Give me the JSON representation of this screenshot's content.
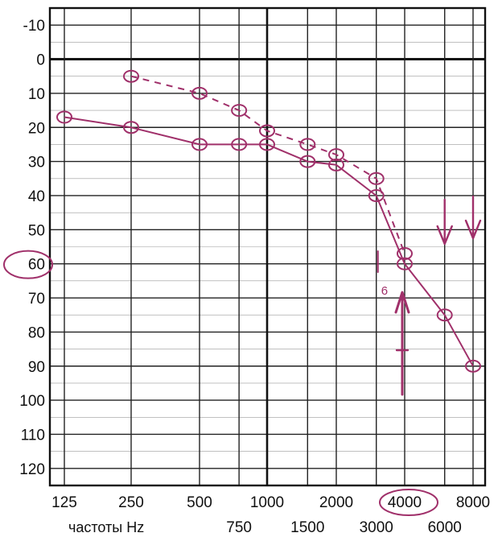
{
  "colors": {
    "grid": "#222222",
    "axis_bold": "#111111",
    "pen": "#a0306a",
    "paper": "#ffffff"
  },
  "chart_data": {
    "type": "line",
    "title": "",
    "xlabel": "частоты Hz",
    "ylabel": "",
    "y_inverted": true,
    "ylim": [
      -15,
      125
    ],
    "yticks": [
      "-10",
      "0",
      "10",
      "20",
      "30",
      "40",
      "50",
      "60",
      "70",
      "80",
      "90",
      "100",
      "110",
      "120"
    ],
    "yticks_values": [
      -10,
      0,
      10,
      20,
      30,
      40,
      50,
      60,
      70,
      80,
      90,
      100,
      110,
      120
    ],
    "x_categories": [
      "125",
      "250",
      "500",
      "1000",
      "2000",
      "4000",
      "8000"
    ],
    "x_intermediate": [
      "750",
      "1500",
      "3000",
      "6000"
    ],
    "x_caption": "частоты Hz",
    "grid": true,
    "series": [
      {
        "marker": "circle",
        "linestyle": "dashed",
        "x": [
          250,
          500,
          750,
          1000,
          1500,
          2000,
          3000,
          4000
        ],
        "values": [
          5,
          10,
          15,
          21,
          25,
          28,
          35,
          57
        ]
      },
      {
        "marker": "circle",
        "linestyle": "solid",
        "x": [
          125,
          250,
          500,
          750,
          1000,
          1500,
          2000,
          3000,
          4000,
          6000,
          8000
        ],
        "values": [
          17,
          20,
          25,
          25,
          25,
          30,
          31,
          40,
          60,
          75,
          90
        ]
      }
    ],
    "annotations": {
      "circled_y_label": "60",
      "circled_x_label": "4000",
      "handwritten_note": "6"
    }
  }
}
